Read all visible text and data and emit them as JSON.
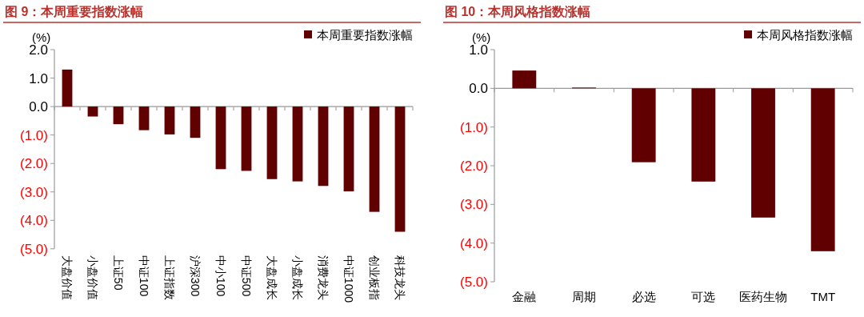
{
  "chart_data": [
    {
      "type": "bar",
      "title": "图 9：本周重要指数涨幅",
      "ylabel": "(%)",
      "legend": "top right",
      "categories": [
        "大盘价值",
        "小盘价值",
        "上证50",
        "中证100",
        "上证指数",
        "沪深300",
        "中小100",
        "中证500",
        "大盘成长",
        "小盘成长",
        "消费龙头",
        "中证1000",
        "创业板指",
        "科技龙头"
      ],
      "series": [
        {
          "name": "本周重要指数涨幅",
          "color": "#600000",
          "values": [
            1.3,
            -0.35,
            -0.62,
            -0.83,
            -0.98,
            -1.1,
            -2.2,
            -2.26,
            -2.55,
            -2.63,
            -2.79,
            -2.98,
            -3.7,
            -4.4
          ]
        }
      ],
      "ylim": [
        -5,
        2
      ],
      "yticks": [
        {
          "value": -5,
          "label": "(5.0)"
        },
        {
          "value": -4,
          "label": "(4.0)"
        },
        {
          "value": -3,
          "label": "(3.0)"
        },
        {
          "value": -2,
          "label": "(2.0)"
        },
        {
          "value": -1,
          "label": "(1.0)"
        },
        {
          "value": 0,
          "label": "0.0"
        },
        {
          "value": 1,
          "label": "1.0"
        },
        {
          "value": 2,
          "label": "2.0"
        }
      ]
    },
    {
      "type": "bar",
      "title": "图 10：本周风格指数涨幅",
      "ylabel": "(%)",
      "legend": "top right",
      "categories": [
        "金融",
        "周期",
        "必选",
        "可选",
        "医药生物",
        "TMT"
      ],
      "series": [
        {
          "name": "本周风格指数涨幅",
          "color": "#600000",
          "values": [
            0.46,
            0.02,
            -1.91,
            -2.41,
            -3.34,
            -4.21
          ]
        }
      ],
      "ylim": [
        -5,
        1
      ],
      "yticks": [
        {
          "value": -5,
          "label": "(5.0)"
        },
        {
          "value": -4,
          "label": "(4.0)"
        },
        {
          "value": -3,
          "label": "(3.0)"
        },
        {
          "value": -2,
          "label": "(2.0)"
        },
        {
          "value": -1,
          "label": "(1.0)"
        },
        {
          "value": 0,
          "label": "0.0"
        },
        {
          "value": 1,
          "label": "1.0"
        }
      ]
    }
  ]
}
